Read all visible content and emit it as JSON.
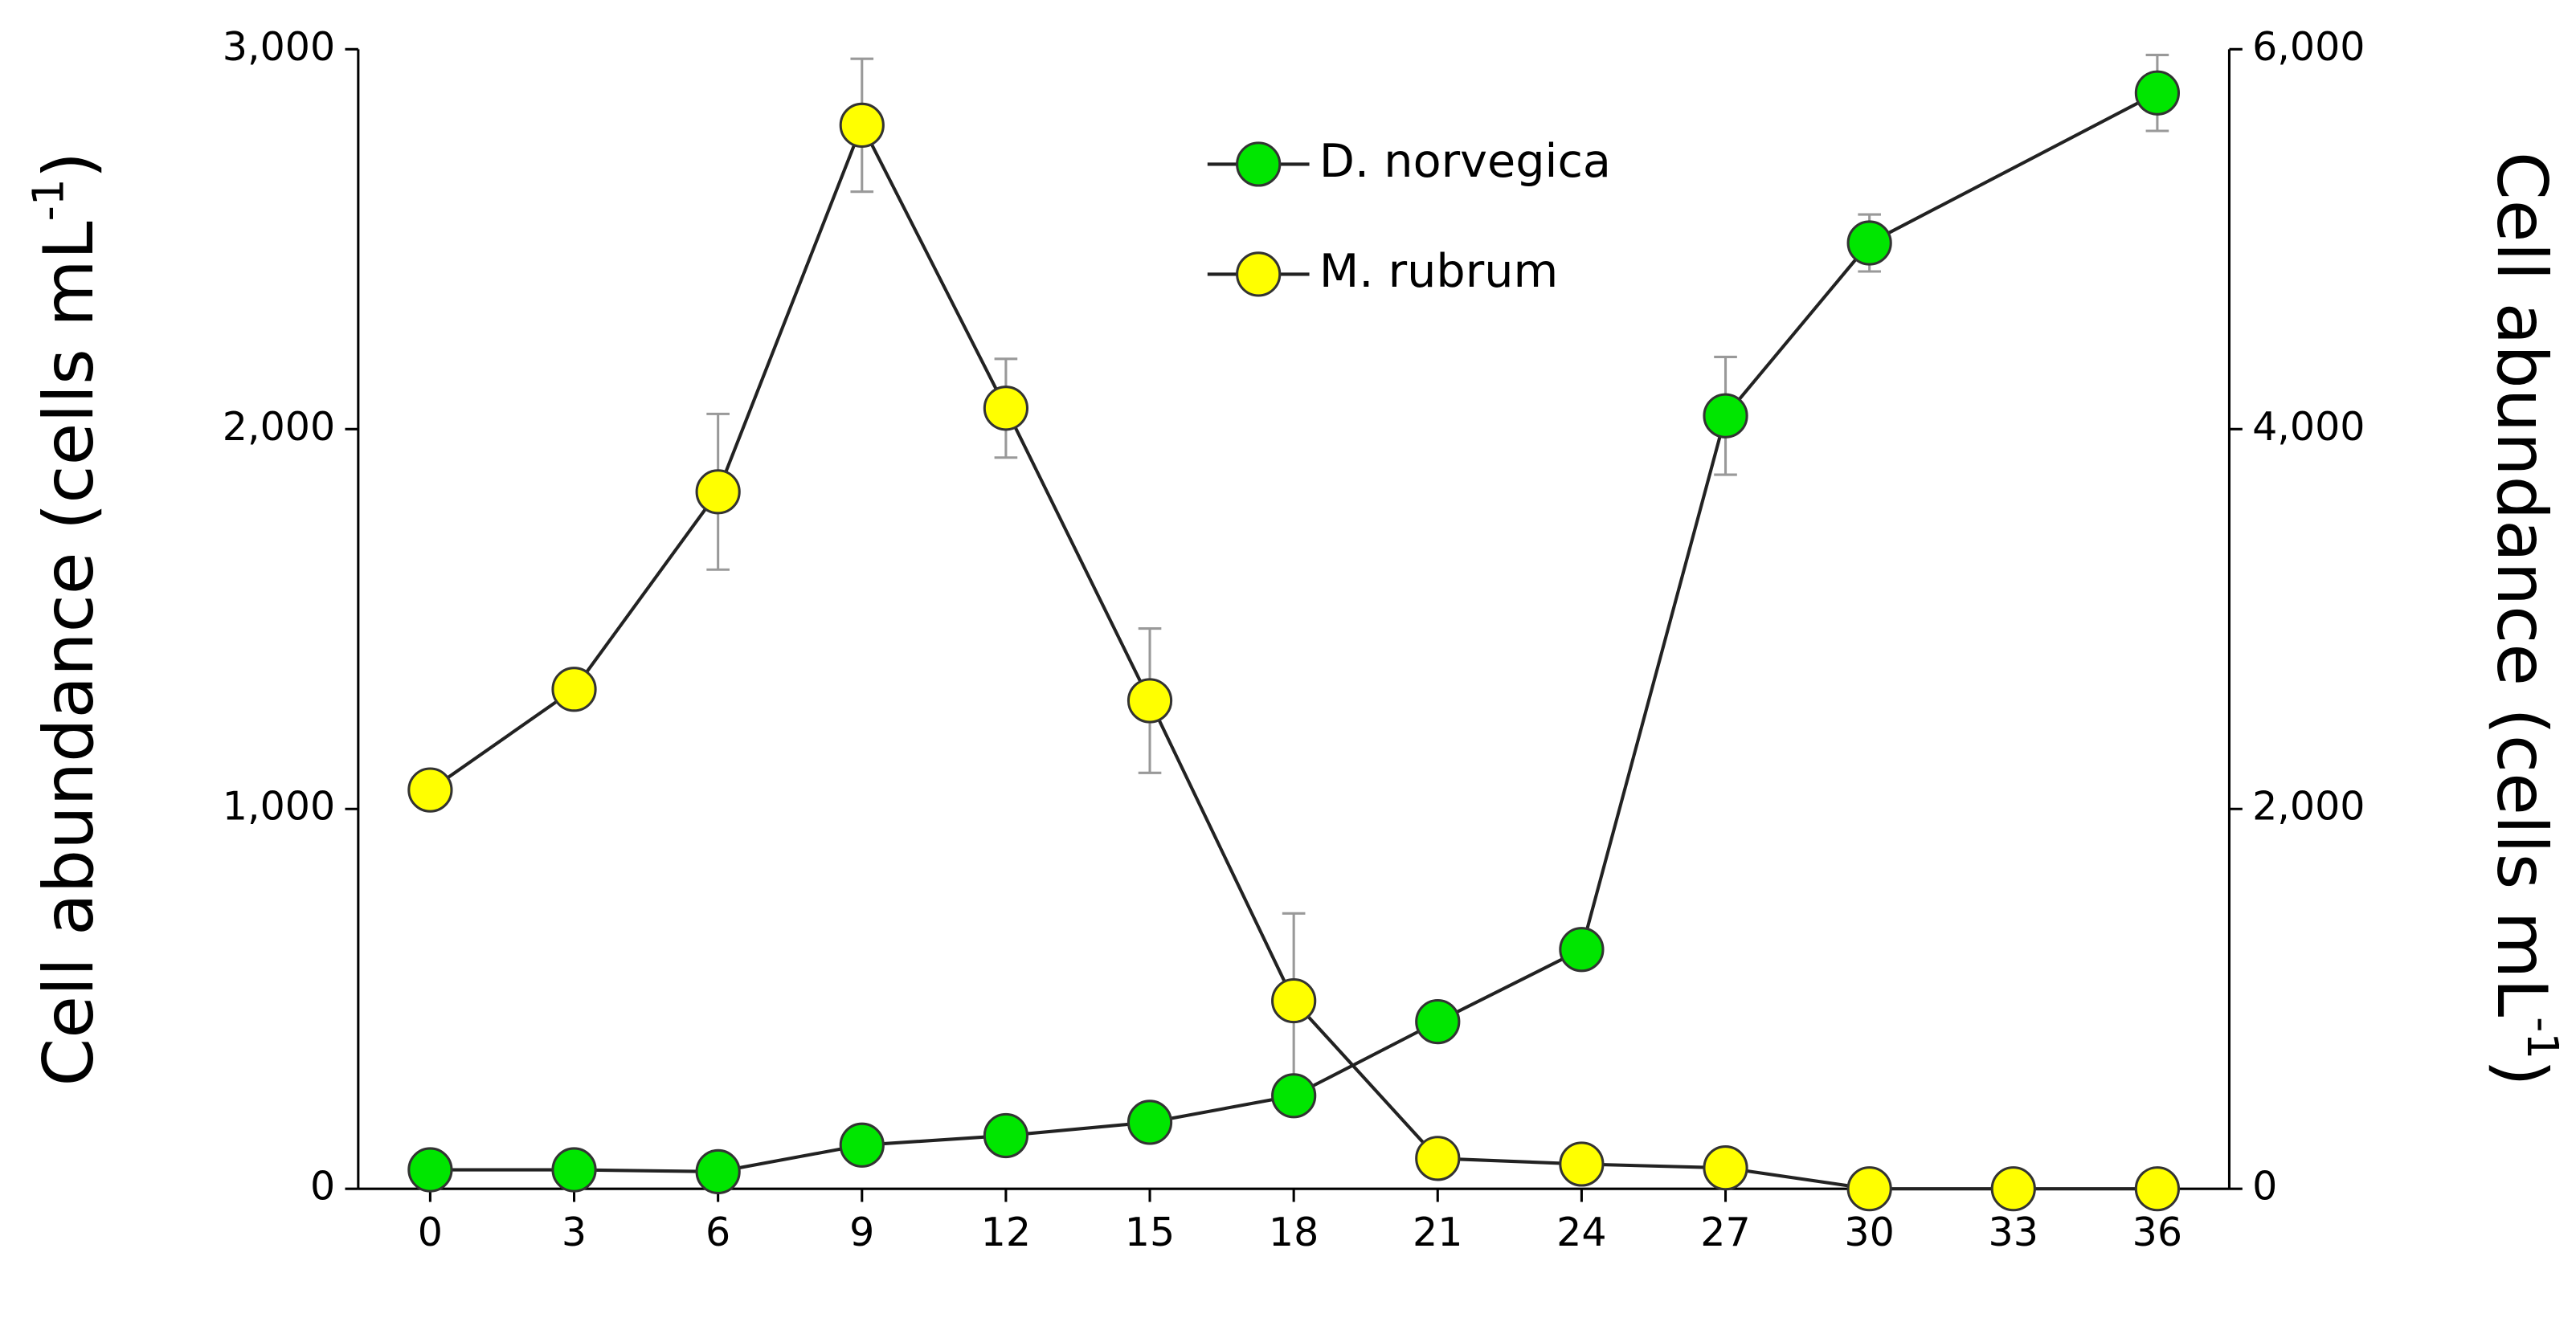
{
  "chart_data": {
    "type": "line",
    "ylabel": {
      "text": "Cell abundance (cells mL",
      "superscript": "-1",
      "suffix": ")"
    },
    "y2label": {
      "text": "Cell abundance (cells mL",
      "superscript": "-1",
      "suffix": ")"
    },
    "xlim": [
      -1.5,
      37.5
    ],
    "xticks": [
      0,
      3,
      6,
      9,
      12,
      15,
      18,
      21,
      24,
      27,
      30,
      33,
      36
    ],
    "ylim": [
      0,
      3000
    ],
    "yticks": [
      0,
      {
        "value": 1000,
        "label": "1,000"
      },
      {
        "value": 2000,
        "label": "2,000"
      },
      {
        "value": 3000,
        "label": "3,000"
      }
    ],
    "y2lim": [
      0,
      6000
    ],
    "y2ticks": [
      0,
      {
        "value": 2000,
        "label": "2,000"
      },
      {
        "value": 4000,
        "label": "4,000"
      },
      {
        "value": 6000,
        "label": "6,000"
      }
    ],
    "series": [
      {
        "name": "D. norvegica",
        "color": "#00e600",
        "x": [
          0,
          3,
          6,
          9,
          12,
          15,
          18,
          21,
          24,
          27,
          30,
          36
        ],
        "values": [
          50,
          50,
          45,
          115,
          140,
          175,
          245,
          440,
          630,
          2035,
          2490,
          2885
        ],
        "errors": [
          0,
          0,
          0,
          0,
          0,
          0,
          0,
          0,
          0,
          155,
          75,
          100
        ]
      },
      {
        "name": "M. rubrum",
        "color": "#ffff00",
        "axis": "y2",
        "x": [
          0,
          3,
          6,
          9,
          12,
          15,
          18,
          21,
          24,
          27,
          30,
          33,
          36
        ],
        "values": [
          2100,
          2630,
          3670,
          5600,
          4110,
          2570,
          990,
          160,
          130,
          110,
          0,
          0,
          0
        ],
        "errors": [
          0,
          0,
          410,
          350,
          260,
          380,
          460,
          0,
          0,
          0,
          0,
          0,
          0
        ]
      }
    ]
  }
}
